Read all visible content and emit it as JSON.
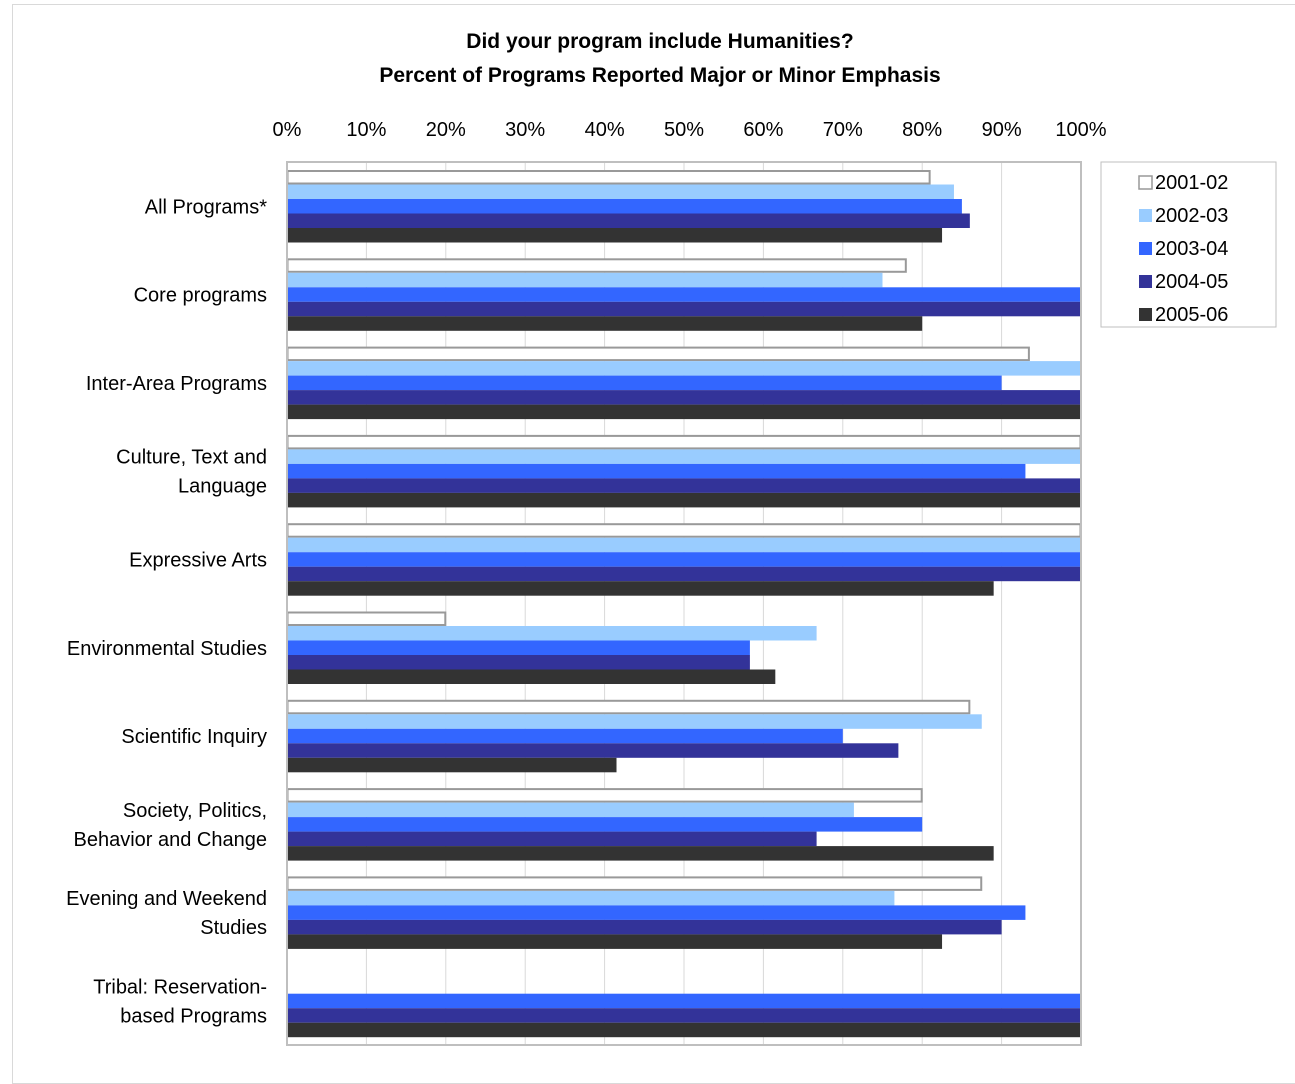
{
  "chart_data": {
    "type": "bar",
    "orientation": "horizontal",
    "title": [
      "Did your program include Humanities?",
      "Percent of Programs Reported Major or Minor Emphasis"
    ],
    "xlim": [
      0,
      100
    ],
    "x_ticks": [
      "0%",
      "10%",
      "20%",
      "30%",
      "40%",
      "50%",
      "60%",
      "70%",
      "80%",
      "90%",
      "100%"
    ],
    "x_axis_position": "top",
    "grid": true,
    "legend_position": "right-top",
    "categories": [
      "All Programs*",
      "Core programs",
      "Inter-Area Programs",
      "Culture, Text and Language",
      "Expressive Arts",
      "Environmental Studies",
      "Scientific Inquiry",
      "Society, Politics, Behavior and Change",
      "Evening and Weekend Studies",
      "Tribal: Reservation-based Programs"
    ],
    "category_lines": [
      [
        "All Programs*"
      ],
      [
        "Core programs"
      ],
      [
        "Inter-Area Programs"
      ],
      [
        "Culture, Text and",
        "Language"
      ],
      [
        "Expressive Arts"
      ],
      [
        "Environmental Studies"
      ],
      [
        "Scientific Inquiry"
      ],
      [
        "Society, Politics,",
        "Behavior and Change"
      ],
      [
        "Evening and Weekend",
        "Studies"
      ],
      [
        "Tribal: Reservation-",
        "based Programs"
      ]
    ],
    "series": [
      {
        "name": "2001-02",
        "color": "#ffffff",
        "stroke": "#999999",
        "values": [
          81,
          78,
          93.5,
          100,
          100,
          20,
          86,
          80,
          87.5,
          null
        ]
      },
      {
        "name": "2002-03",
        "color": "#99ccff",
        "values": [
          84,
          75,
          100,
          100,
          100,
          66.7,
          87.5,
          71.4,
          76.5,
          null
        ]
      },
      {
        "name": "2003-04",
        "color": "#3366ff",
        "values": [
          85,
          100,
          90,
          93,
          100,
          58.3,
          70,
          80,
          93,
          100
        ]
      },
      {
        "name": "2004-05",
        "color": "#333399",
        "values": [
          86,
          100,
          100,
          100,
          100,
          58.3,
          77,
          66.7,
          90,
          100
        ]
      },
      {
        "name": "2005-06",
        "color": "#333333",
        "values": [
          82.5,
          80,
          100,
          100,
          89,
          61.5,
          41.5,
          89,
          82.5,
          100
        ]
      }
    ]
  }
}
